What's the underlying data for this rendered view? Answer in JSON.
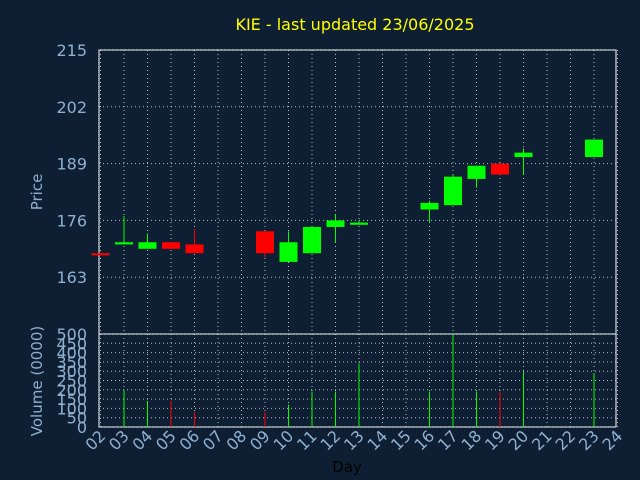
{
  "chart_data": {
    "type": "candlestick",
    "title": "KIE - last updated 23/06/2025",
    "xlabel": "Day",
    "price_panel": {
      "ylabel": "Price",
      "ylim": [
        150,
        215
      ],
      "yticks": [
        163,
        176,
        189,
        202,
        215
      ]
    },
    "volume_panel": {
      "ylabel": "Volume (0000)",
      "ylim": [
        0,
        500
      ],
      "yticks": [
        0,
        50,
        100,
        150,
        200,
        250,
        300,
        350,
        400,
        450,
        500
      ]
    },
    "x_ticks": [
      "02",
      "03",
      "04",
      "05",
      "06",
      "07",
      "08",
      "09",
      "10",
      "11",
      "12",
      "13",
      "14",
      "15",
      "16",
      "17",
      "18",
      "19",
      "20",
      "21",
      "22",
      "23",
      "24"
    ],
    "up_color": "#00ff00",
    "down_color": "#ff0000",
    "candles": [
      {
        "day": "02",
        "open": 168.5,
        "high": 168.5,
        "low": 168.0,
        "close": 168.0,
        "volume": 0
      },
      {
        "day": "03",
        "open": 170.5,
        "high": 177.0,
        "low": 170.5,
        "close": 171.0,
        "volume": 200
      },
      {
        "day": "04",
        "open": 169.5,
        "high": 173.0,
        "low": 169.5,
        "close": 171.0,
        "volume": 140
      },
      {
        "day": "05",
        "open": 171.0,
        "high": 171.0,
        "low": 169.5,
        "close": 169.5,
        "volume": 140
      },
      {
        "day": "06",
        "open": 170.5,
        "high": 174.0,
        "low": 168.5,
        "close": 168.5,
        "volume": 80
      },
      {
        "day": "09",
        "open": 173.5,
        "high": 173.5,
        "low": 167.5,
        "close": 168.5,
        "volume": 80
      },
      {
        "day": "10",
        "open": 166.5,
        "high": 173.5,
        "low": 166.5,
        "close": 171.0,
        "volume": 120
      },
      {
        "day": "11",
        "open": 168.5,
        "high": 174.5,
        "low": 168.5,
        "close": 174.5,
        "volume": 190
      },
      {
        "day": "12",
        "open": 174.5,
        "high": 177.5,
        "low": 171.0,
        "close": 176.0,
        "volume": 190
      },
      {
        "day": "13",
        "open": 175.0,
        "high": 176.0,
        "low": 175.0,
        "close": 175.5,
        "volume": 340
      },
      {
        "day": "16",
        "open": 178.5,
        "high": 180.5,
        "low": 175.5,
        "close": 180.0,
        "volume": 190
      },
      {
        "day": "17",
        "open": 179.5,
        "high": 186.5,
        "low": 179.5,
        "close": 186.0,
        "volume": 500
      },
      {
        "day": "18",
        "open": 185.5,
        "high": 188.5,
        "low": 183.5,
        "close": 188.5,
        "volume": 190
      },
      {
        "day": "19",
        "open": 189.0,
        "high": 189.0,
        "low": 186.5,
        "close": 186.5,
        "volume": 190
      },
      {
        "day": "20",
        "open": 190.5,
        "high": 192.5,
        "low": 186.5,
        "close": 191.5,
        "volume": 300
      },
      {
        "day": "23",
        "open": 190.5,
        "high": 194.5,
        "low": 190.5,
        "close": 194.5,
        "volume": 290
      }
    ]
  }
}
